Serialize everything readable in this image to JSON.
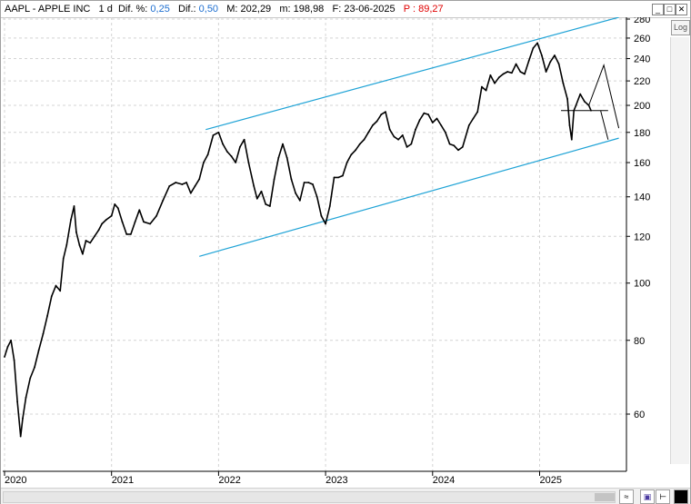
{
  "header": {
    "symbol": "AAPL - APPLE INC",
    "interval": "1 d",
    "dif_pct_label": "Dif. %:",
    "dif_pct_value": "0,25",
    "dif_label": "Dif.:",
    "dif_value": "0,50",
    "max_label": "M:",
    "max_value": "202,29",
    "min_label": "m:",
    "min_value": "198,98",
    "date_label": "F:",
    "date_value": "23-06-2025",
    "p_label": "P :",
    "p_value": "89,27"
  },
  "window_buttons": {
    "minimize": "_",
    "maximize": "□",
    "close": "✕"
  },
  "log_button": "Log",
  "colors": {
    "price": "#000000",
    "channel": "#1fa3d6",
    "grid": "#d4d4d4",
    "highlight": "#e00000",
    "value_blue": "#1e6fd0"
  },
  "chart_data": {
    "type": "line",
    "scale": "log",
    "ylim": [
      48,
      282
    ],
    "y_ticks": [
      60,
      80,
      100,
      120,
      140,
      160,
      180,
      200,
      220,
      240,
      260,
      280
    ],
    "x_tick_labels": [
      "2020",
      "2021",
      "2022",
      "2023",
      "2024",
      "2025"
    ],
    "x_tick_values": [
      2020.0,
      2021.0,
      2022.0,
      2023.0,
      2024.0,
      2025.0
    ],
    "xlim": [
      2020.0,
      2025.85
    ],
    "grid": true,
    "series": [
      {
        "values": [
          [
            2020.0,
            75
          ],
          [
            2020.03,
            78
          ],
          [
            2020.06,
            80
          ],
          [
            2020.09,
            74
          ],
          [
            2020.12,
            63
          ],
          [
            2020.15,
            55
          ],
          [
            2020.17,
            59
          ],
          [
            2020.2,
            64
          ],
          [
            2020.24,
            69
          ],
          [
            2020.28,
            72
          ],
          [
            2020.32,
            77
          ],
          [
            2020.36,
            82
          ],
          [
            2020.4,
            88
          ],
          [
            2020.44,
            95
          ],
          [
            2020.48,
            99
          ],
          [
            2020.52,
            97
          ],
          [
            2020.55,
            110
          ],
          [
            2020.58,
            116
          ],
          [
            2020.62,
            128
          ],
          [
            2020.65,
            135
          ],
          [
            2020.67,
            122
          ],
          [
            2020.7,
            116
          ],
          [
            2020.73,
            112
          ],
          [
            2020.76,
            118
          ],
          [
            2020.8,
            117
          ],
          [
            2020.84,
            120
          ],
          [
            2020.88,
            123
          ],
          [
            2020.91,
            126
          ],
          [
            2020.95,
            128
          ],
          [
            2021.0,
            130
          ],
          [
            2021.03,
            136
          ],
          [
            2021.06,
            134
          ],
          [
            2021.1,
            127
          ],
          [
            2021.14,
            121
          ],
          [
            2021.18,
            121
          ],
          [
            2021.22,
            127
          ],
          [
            2021.26,
            133
          ],
          [
            2021.3,
            127
          ],
          [
            2021.36,
            126
          ],
          [
            2021.42,
            130
          ],
          [
            2021.48,
            138
          ],
          [
            2021.54,
            146
          ],
          [
            2021.6,
            148
          ],
          [
            2021.66,
            147
          ],
          [
            2021.7,
            148
          ],
          [
            2021.74,
            142
          ],
          [
            2021.78,
            146
          ],
          [
            2021.82,
            150
          ],
          [
            2021.86,
            160
          ],
          [
            2021.9,
            165
          ],
          [
            2021.95,
            178
          ],
          [
            2022.0,
            180
          ],
          [
            2022.04,
            172
          ],
          [
            2022.08,
            167
          ],
          [
            2022.12,
            164
          ],
          [
            2022.16,
            160
          ],
          [
            2022.2,
            170
          ],
          [
            2022.24,
            175
          ],
          [
            2022.28,
            160
          ],
          [
            2022.33,
            146
          ],
          [
            2022.36,
            139
          ],
          [
            2022.4,
            143
          ],
          [
            2022.44,
            136
          ],
          [
            2022.48,
            135
          ],
          [
            2022.52,
            150
          ],
          [
            2022.56,
            163
          ],
          [
            2022.6,
            172
          ],
          [
            2022.64,
            163
          ],
          [
            2022.68,
            150
          ],
          [
            2022.72,
            142
          ],
          [
            2022.76,
            138
          ],
          [
            2022.8,
            148
          ],
          [
            2022.84,
            148
          ],
          [
            2022.88,
            147
          ],
          [
            2022.92,
            140
          ],
          [
            2022.96,
            130
          ],
          [
            2023.0,
            126
          ],
          [
            2023.04,
            135
          ],
          [
            2023.08,
            151
          ],
          [
            2023.12,
            151
          ],
          [
            2023.16,
            152
          ],
          [
            2023.2,
            160
          ],
          [
            2023.24,
            165
          ],
          [
            2023.28,
            168
          ],
          [
            2023.32,
            172
          ],
          [
            2023.36,
            175
          ],
          [
            2023.4,
            180
          ],
          [
            2023.44,
            185
          ],
          [
            2023.48,
            188
          ],
          [
            2023.52,
            193
          ],
          [
            2023.56,
            195
          ],
          [
            2023.6,
            182
          ],
          [
            2023.64,
            177
          ],
          [
            2023.68,
            175
          ],
          [
            2023.72,
            178
          ],
          [
            2023.76,
            170
          ],
          [
            2023.8,
            172
          ],
          [
            2023.84,
            182
          ],
          [
            2023.88,
            189
          ],
          [
            2023.92,
            194
          ],
          [
            2023.96,
            193
          ],
          [
            2024.0,
            187
          ],
          [
            2024.04,
            190
          ],
          [
            2024.08,
            185
          ],
          [
            2024.12,
            180
          ],
          [
            2024.16,
            172
          ],
          [
            2024.2,
            171
          ],
          [
            2024.24,
            168
          ],
          [
            2024.28,
            170
          ],
          [
            2024.34,
            185
          ],
          [
            2024.38,
            190
          ],
          [
            2024.42,
            195
          ],
          [
            2024.46,
            215
          ],
          [
            2024.5,
            212
          ],
          [
            2024.54,
            225
          ],
          [
            2024.58,
            218
          ],
          [
            2024.62,
            223
          ],
          [
            2024.66,
            226
          ],
          [
            2024.7,
            228
          ],
          [
            2024.74,
            227
          ],
          [
            2024.78,
            235
          ],
          [
            2024.82,
            228
          ],
          [
            2024.86,
            226
          ],
          [
            2024.9,
            238
          ],
          [
            2024.94,
            250
          ],
          [
            2024.98,
            255
          ],
          [
            2025.02,
            243
          ],
          [
            2025.06,
            228
          ],
          [
            2025.1,
            237
          ],
          [
            2025.14,
            243
          ],
          [
            2025.18,
            235
          ],
          [
            2025.22,
            218
          ],
          [
            2025.26,
            205
          ],
          [
            2025.28,
            185
          ],
          [
            2025.3,
            175
          ],
          [
            2025.32,
            196
          ],
          [
            2025.34,
            200
          ],
          [
            2025.38,
            209
          ],
          [
            2025.42,
            203
          ],
          [
            2025.46,
            200
          ],
          [
            2025.48,
            196
          ]
        ]
      }
    ],
    "channel_lines": [
      {
        "x": [
          2021.88,
          2025.74
        ],
        "y": [
          182,
          282
        ]
      },
      {
        "x": [
          2021.82,
          2025.74
        ],
        "y": [
          111,
          176
        ]
      }
    ],
    "annotation_lines": [
      {
        "x": [
          2025.2,
          2025.64
        ],
        "y": [
          196,
          196
        ]
      },
      {
        "x": [
          2025.57,
          2025.64
        ],
        "y": [
          196,
          175
        ]
      }
    ],
    "annotation_arrows": [
      {
        "x": [
          2025.46,
          2025.6,
          2025.74
        ],
        "y": [
          200,
          234,
          183
        ]
      }
    ]
  }
}
